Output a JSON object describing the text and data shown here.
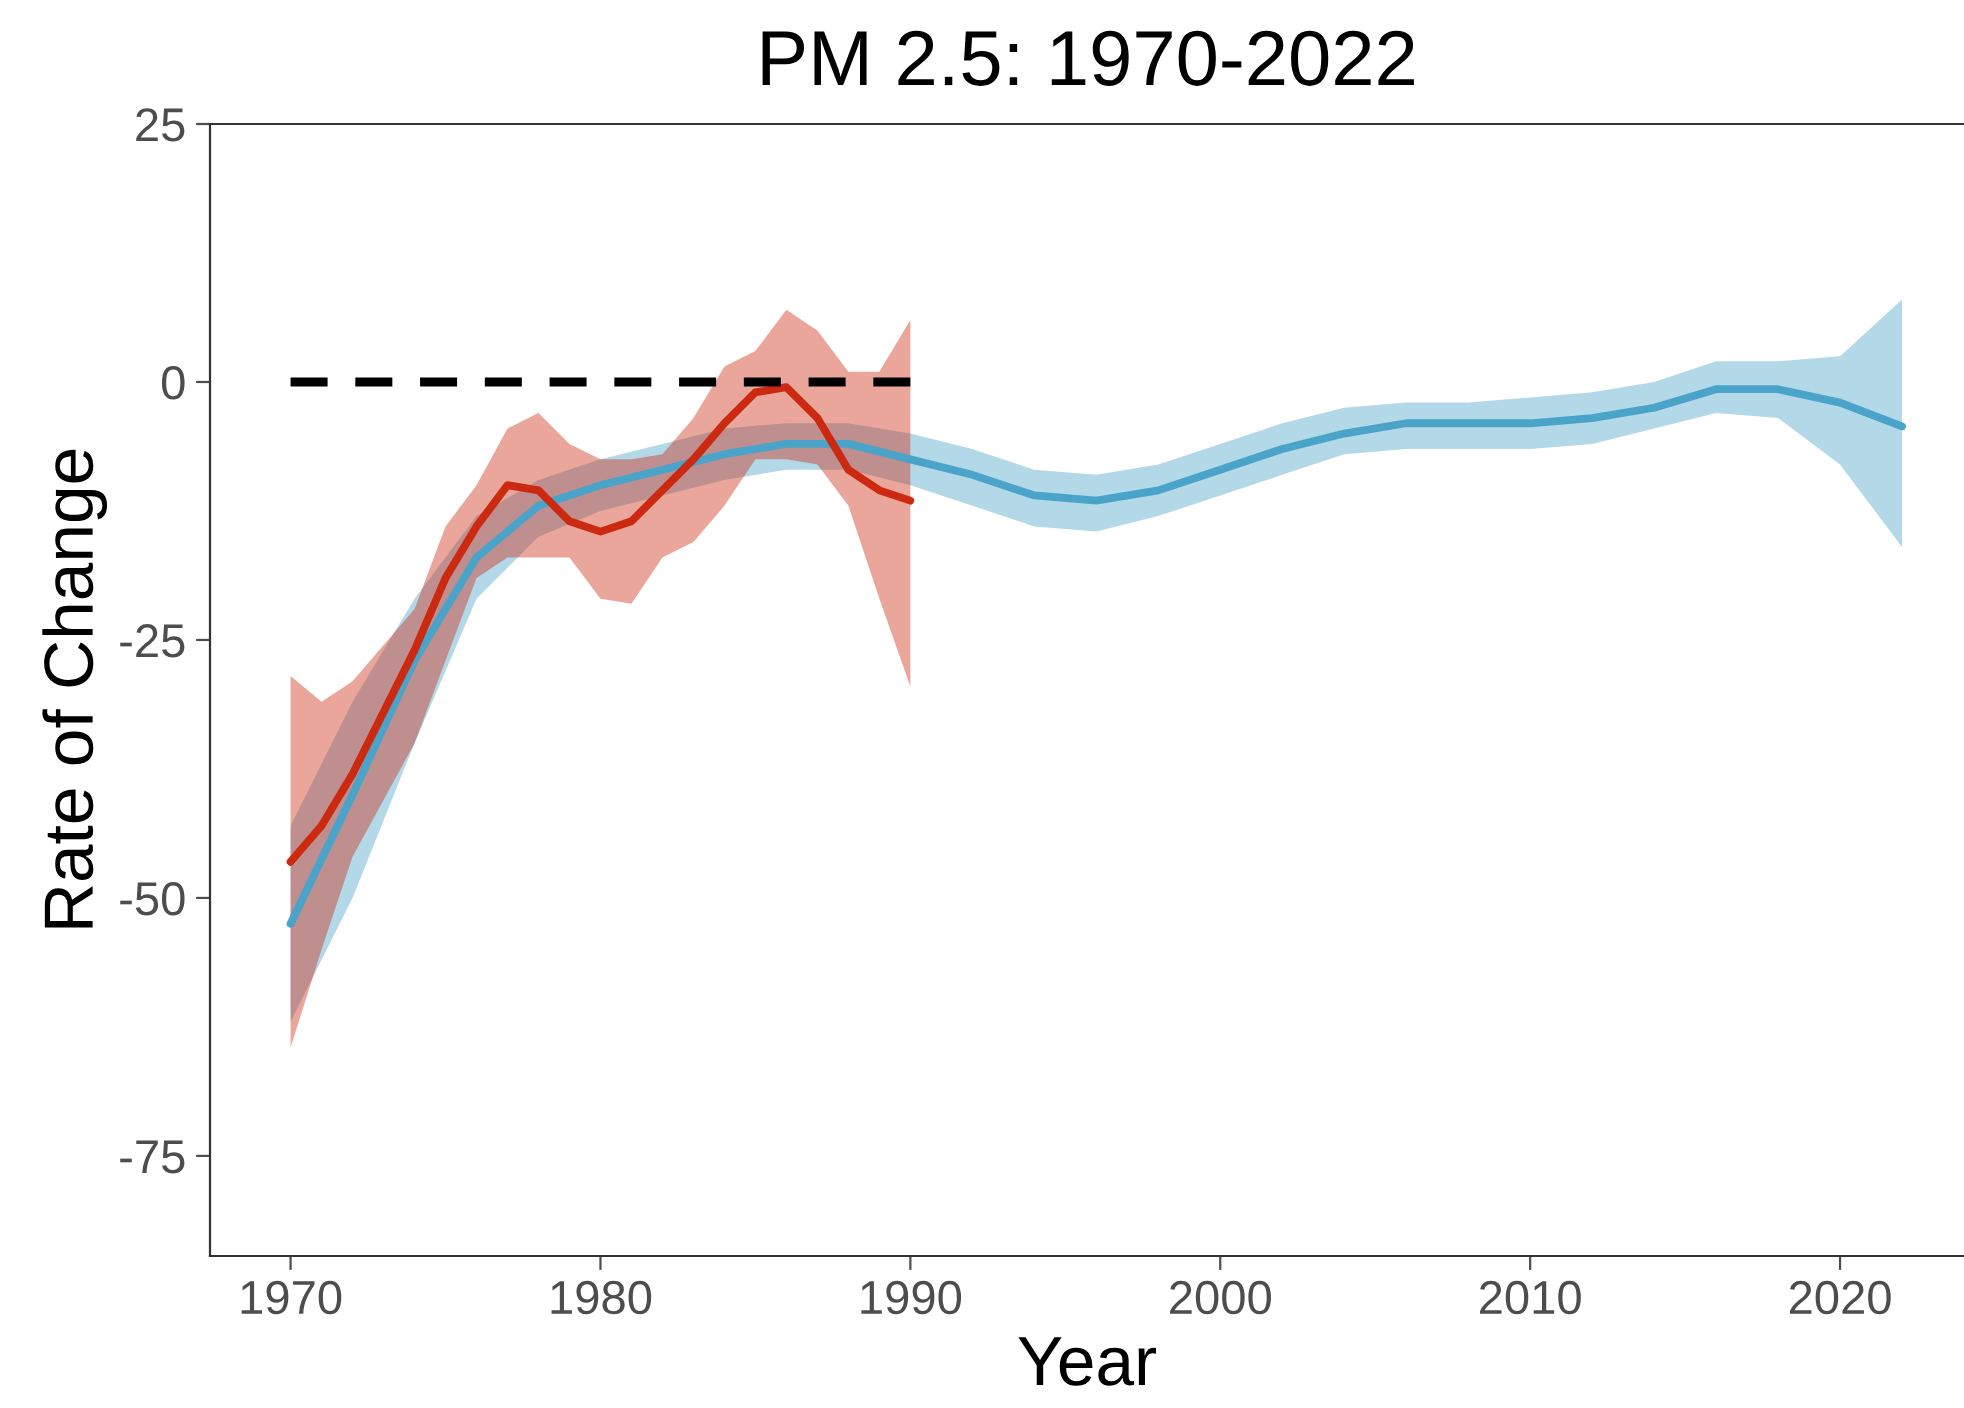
{
  "chart_data": {
    "type": "line",
    "title": "PM 2.5: 1970-2022",
    "xlabel": "Year",
    "ylabel": "Rate of Change",
    "xlim": [
      1967.4,
      2024
    ],
    "xticks": [
      1970,
      1980,
      1990,
      2000,
      2010,
      2020
    ],
    "ylim": [
      -84.7,
      25
    ],
    "yticks": [
      {
        "value": 25,
        "label": "25"
      },
      {
        "value": 0,
        "label": "0"
      },
      {
        "value": -25,
        "label": "-25"
      },
      {
        "value": -50,
        "label": "-50"
      },
      {
        "value": -75,
        "label": "-75"
      }
    ],
    "grid": false,
    "legend": false,
    "marker": "none",
    "series": [
      {
        "color": "#4aa3c8",
        "line_style": "solid",
        "x": [
          1970,
          1972,
          1974,
          1976,
          1978,
          1980,
          1982,
          1984,
          1986,
          1988,
          1990,
          1992,
          1994,
          1996,
          1998,
          2000,
          2002,
          2004,
          2006,
          2008,
          2010,
          2012,
          2014,
          2016,
          2018,
          2020,
          2022
        ],
        "values": [
          -52.5,
          -40,
          -27,
          -17,
          -12,
          -10,
          -8.5,
          -7,
          -6,
          -6,
          -7.5,
          -9,
          -11,
          -11.5,
          -10.5,
          -8.5,
          -6.5,
          -5,
          -4,
          -4,
          -4,
          -3.5,
          -2.5,
          -0.7,
          -0.7,
          -2,
          -4.3
        ],
        "lower": [
          -62,
          -50,
          -35,
          -21,
          -15,
          -12.5,
          -11,
          -9.5,
          -8.5,
          -8.5,
          -10,
          -12,
          -14,
          -14.5,
          -13,
          -11,
          -9,
          -7,
          -6.5,
          -6.5,
          -6.5,
          -6,
          -4.5,
          -3,
          -3.5,
          -8,
          -16
        ],
        "upper": [
          -43,
          -31,
          -21,
          -13,
          -9.5,
          -7.5,
          -6,
          -4.5,
          -4,
          -4,
          -5,
          -6.5,
          -8.5,
          -9,
          -8,
          -6,
          -4,
          -2.5,
          -2,
          -2,
          -1.5,
          -1,
          0,
          2,
          2,
          2.5,
          8
        ]
      },
      {
        "color": "#cc2a10",
        "line_style": "solid",
        "x": [
          1970,
          1971,
          1972,
          1974,
          1975,
          1976,
          1977,
          1978,
          1979,
          1980,
          1981,
          1982,
          1983,
          1984,
          1985,
          1986,
          1987,
          1988,
          1989,
          1990
        ],
        "values": [
          -46.5,
          -43,
          -38,
          -26,
          -19,
          -14,
          -10,
          -10.5,
          -13.5,
          -14.5,
          -13.5,
          -10.5,
          -7.5,
          -4,
          -1,
          -0.5,
          -3.5,
          -8.5,
          -10.5,
          -11.5
        ],
        "lower": [
          -64.5,
          -55,
          -46,
          -35,
          -27,
          -19,
          -17,
          -17,
          -17,
          -21,
          -21.5,
          -17,
          -15.5,
          -12,
          -7.5,
          -7.5,
          -8,
          -12,
          -21,
          -29.5
        ],
        "upper": [
          -28.5,
          -31,
          -29,
          -22,
          -14,
          -10,
          -4.5,
          -3,
          -6,
          -7.5,
          -7.5,
          -7,
          -3.5,
          1.5,
          3,
          7,
          5,
          1,
          1,
          6
        ]
      },
      {
        "color": "#000000",
        "line_style": "dashed",
        "x": [
          1970,
          1990
        ],
        "values": [
          0,
          0
        ]
      }
    ]
  }
}
